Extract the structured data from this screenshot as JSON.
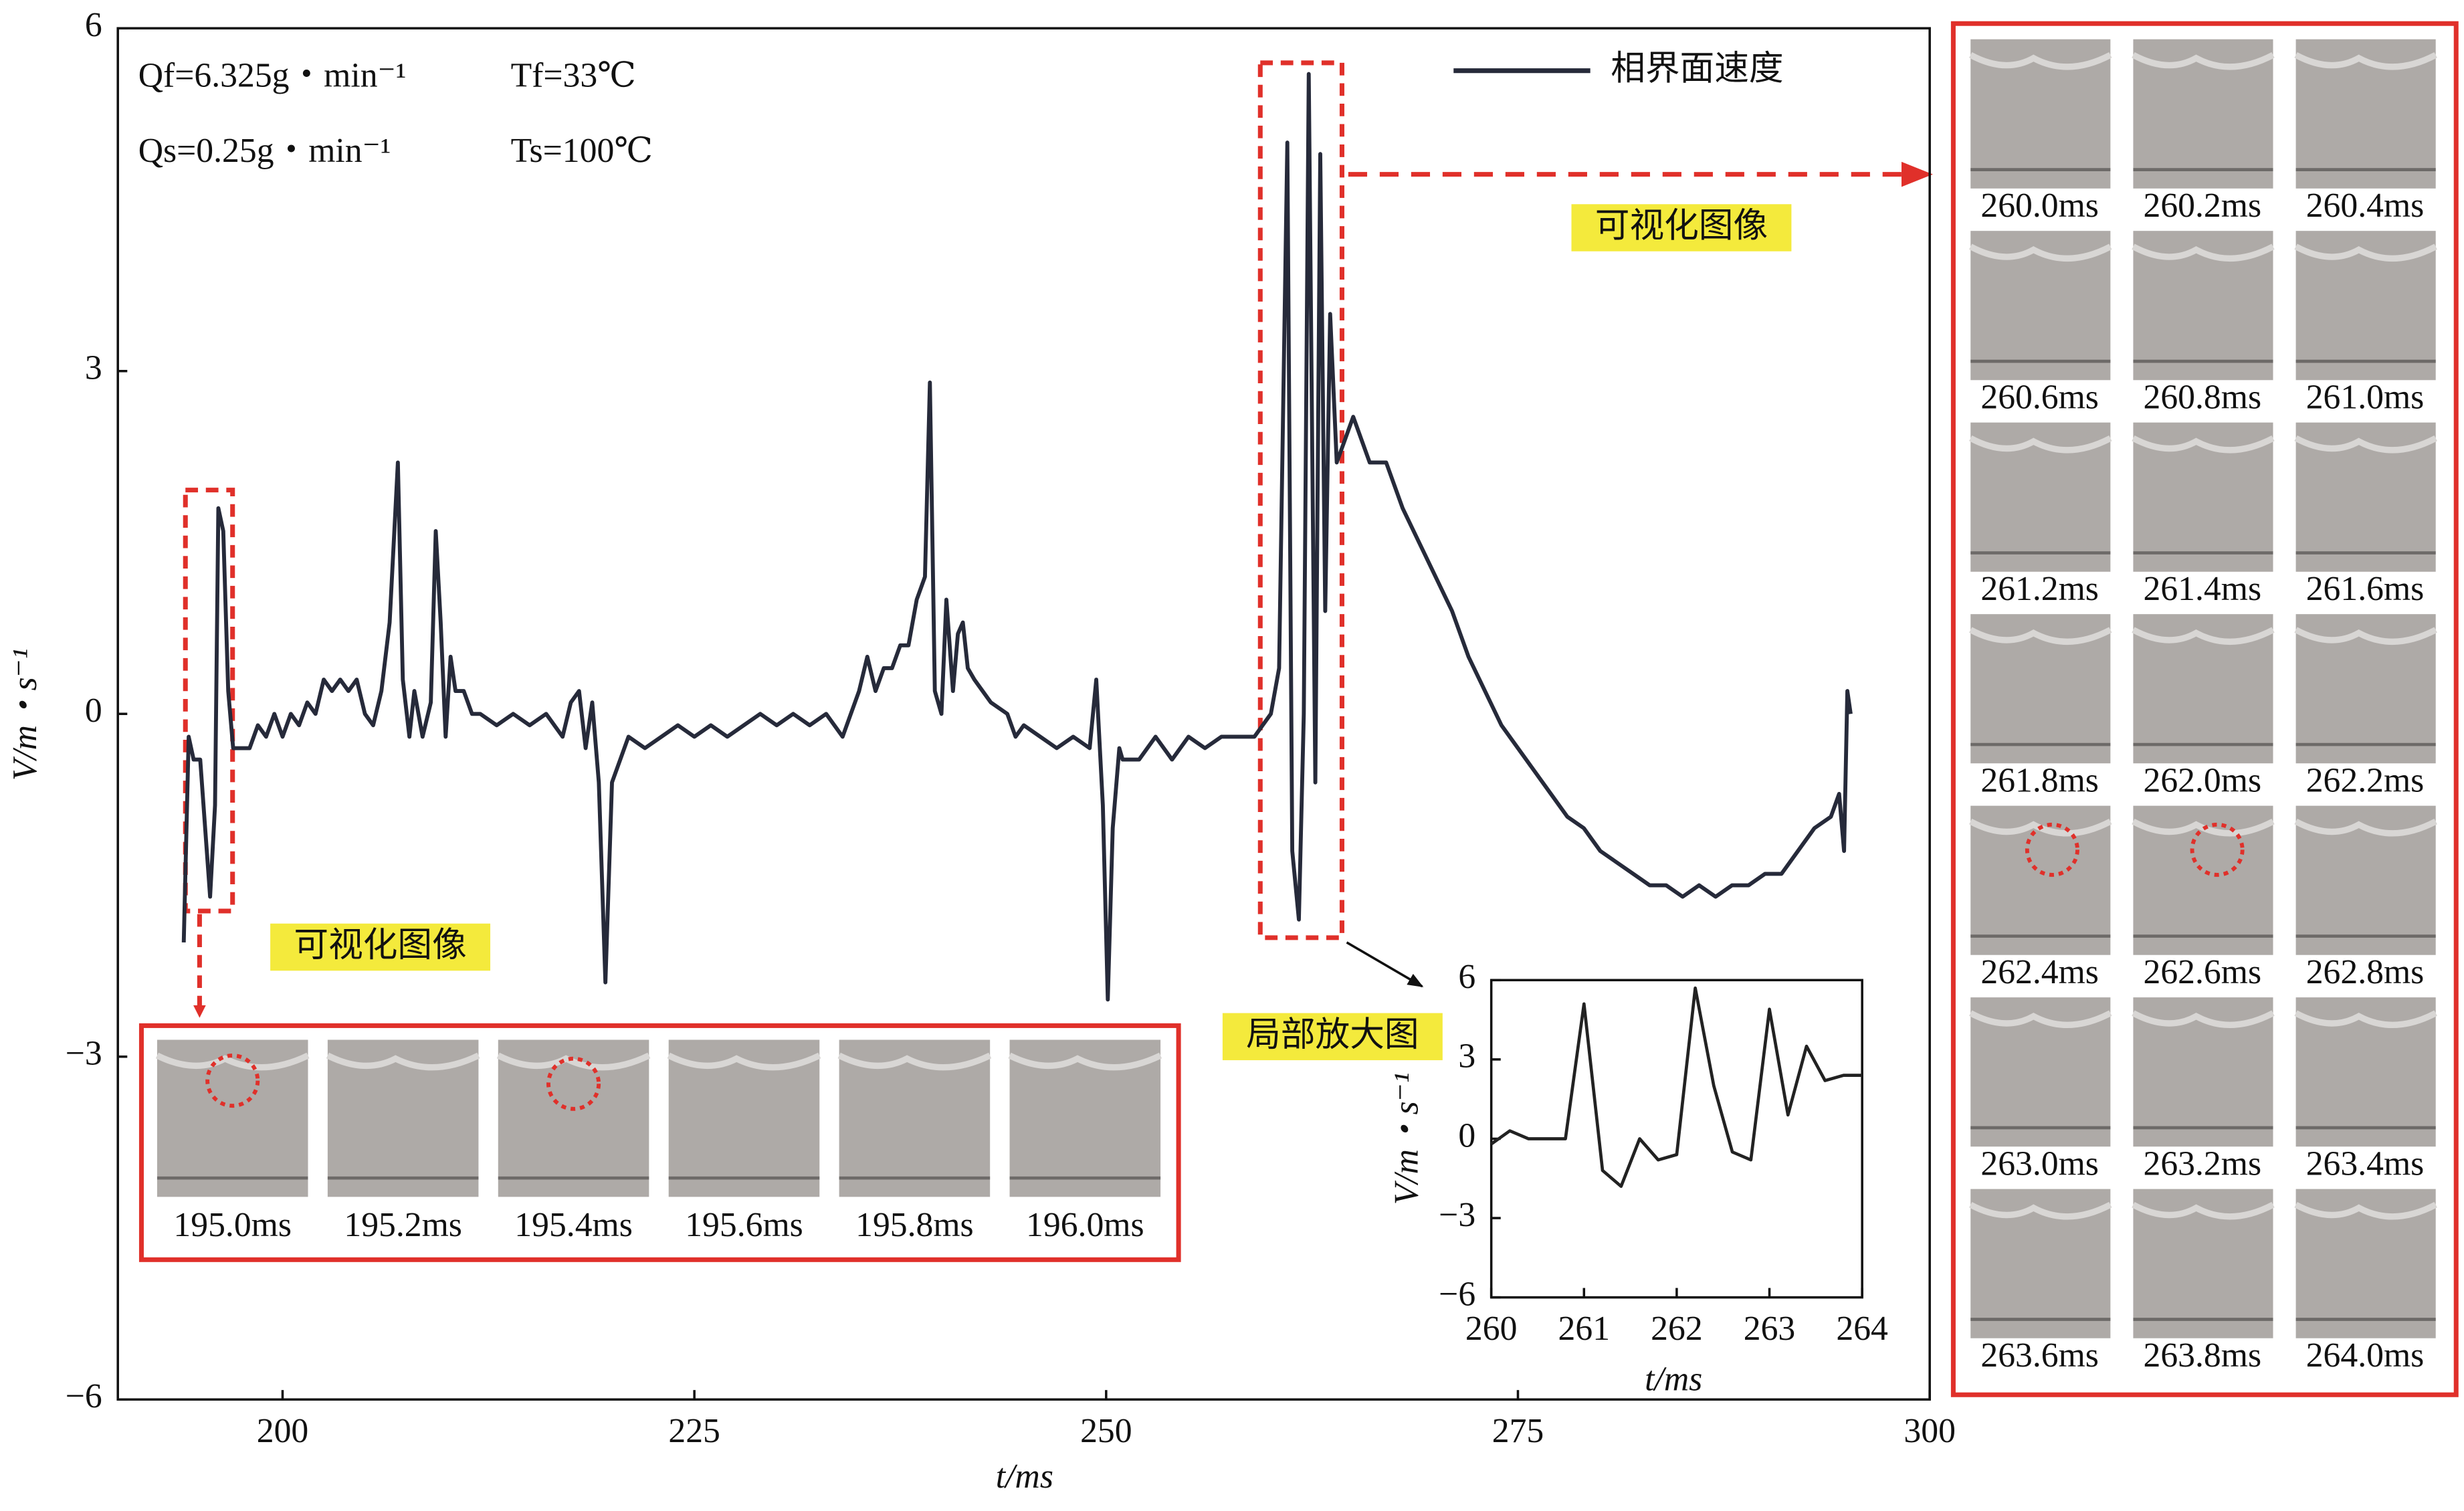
{
  "chart_data": [
    {
      "type": "line",
      "x": [
        194,
        194.3,
        194.6,
        195,
        195.3,
        195.6,
        195.9,
        196.1,
        196.4,
        196.7,
        197,
        197.5,
        198,
        198.5,
        199,
        199.5,
        200,
        200.5,
        201,
        201.5,
        202,
        202.5,
        203,
        203.5,
        204,
        204.5,
        205,
        205.5,
        206,
        206.5,
        207,
        207.3,
        207.7,
        208,
        208.5,
        209,
        209.3,
        209.6,
        209.9,
        210.2,
        210.5,
        211,
        211.5,
        212,
        213,
        214,
        215,
        216,
        217,
        217.5,
        218,
        218.4,
        218.8,
        219.2,
        219.6,
        220,
        220.5,
        221,
        222,
        223,
        224,
        225,
        226,
        227,
        228,
        229,
        230,
        231,
        232,
        233,
        234,
        234.5,
        235,
        235.5,
        236,
        236.5,
        237,
        237.5,
        238,
        238.5,
        239,
        239.3,
        239.6,
        240,
        240.3,
        240.7,
        241,
        241.3,
        241.6,
        242,
        242.5,
        243,
        244,
        244.5,
        245,
        246,
        247,
        248,
        249,
        249.4,
        249.8,
        250.1,
        250.4,
        250.8,
        251,
        252,
        253,
        254,
        255,
        256,
        257,
        258,
        259,
        260,
        260.5,
        261,
        261.3,
        261.7,
        262,
        262.3,
        262.7,
        263,
        263.3,
        263.6,
        264,
        264.5,
        265,
        266,
        267,
        268,
        269,
        270,
        271,
        272,
        273,
        274,
        275,
        276,
        277,
        278,
        279,
        280,
        281,
        282,
        283,
        284,
        285,
        286,
        287,
        288,
        289,
        290,
        291,
        292,
        293,
        294,
        294.5,
        294.8,
        295,
        295.2
      ],
      "series": [
        {
          "name": "相界面速度",
          "color": "#262a3a",
          "values": [
            -2.0,
            -0.2,
            -0.4,
            -0.4,
            -1.0,
            -1.6,
            -0.8,
            1.8,
            1.6,
            0.2,
            -0.3,
            -0.3,
            -0.3,
            -0.1,
            -0.2,
            0.0,
            -0.2,
            0.0,
            -0.1,
            0.1,
            0.0,
            0.3,
            0.2,
            0.3,
            0.2,
            0.3,
            0.0,
            -0.1,
            0.2,
            0.8,
            2.2,
            0.3,
            -0.2,
            0.2,
            -0.2,
            0.1,
            1.6,
            0.8,
            -0.2,
            0.5,
            0.2,
            0.2,
            0.0,
            0.0,
            -0.1,
            0.0,
            -0.1,
            0.0,
            -0.2,
            0.1,
            0.2,
            -0.3,
            0.1,
            -0.6,
            -2.35,
            -0.6,
            -0.4,
            -0.2,
            -0.3,
            -0.2,
            -0.1,
            -0.2,
            -0.1,
            -0.2,
            -0.1,
            0.0,
            -0.1,
            0.0,
            -0.1,
            0.0,
            -0.2,
            0.0,
            0.2,
            0.5,
            0.2,
            0.4,
            0.4,
            0.6,
            0.6,
            1.0,
            1.2,
            2.9,
            0.2,
            0.0,
            1.0,
            0.2,
            0.7,
            0.8,
            0.4,
            0.3,
            0.2,
            0.1,
            0.0,
            -0.2,
            -0.1,
            -0.2,
            -0.3,
            -0.2,
            -0.3,
            0.3,
            -0.8,
            -2.5,
            -1.0,
            -0.3,
            -0.4,
            -0.4,
            -0.2,
            -0.4,
            -0.2,
            -0.3,
            -0.2,
            -0.2,
            -0.2,
            0.0,
            0.4,
            5.0,
            -1.2,
            -1.8,
            0.0,
            5.6,
            -0.6,
            4.9,
            0.9,
            3.5,
            2.2,
            2.4,
            2.6,
            2.2,
            2.2,
            1.8,
            1.5,
            1.2,
            0.9,
            0.5,
            0.2,
            -0.1,
            -0.3,
            -0.5,
            -0.7,
            -0.9,
            -1.0,
            -1.2,
            -1.3,
            -1.4,
            -1.5,
            -1.5,
            -1.6,
            -1.5,
            -1.6,
            -1.5,
            -1.5,
            -1.4,
            -1.4,
            -1.2,
            -1.0,
            -0.9,
            -0.7,
            -1.2,
            0.2,
            0.0
          ]
        }
      ],
      "xlim": [
        190,
        300
      ],
      "ylim": [
        -6,
        6
      ],
      "xticks": [
        200,
        225,
        250,
        275,
        300
      ],
      "yticks": [
        {
          "value": -6,
          "label": "−6"
        },
        {
          "value": -3,
          "label": "−3"
        },
        0,
        3,
        6
      ],
      "xlabel": "t/ms",
      "ylabel": "V/m・s⁻¹",
      "annotations": [
        "Qf=6.325g・min⁻¹",
        "Tf=33℃",
        "Qs=0.25g・min⁻¹",
        "Ts=100℃"
      ]
    },
    {
      "type": "line",
      "x": [
        260,
        260.2,
        260.4,
        260.6,
        260.8,
        261,
        261.2,
        261.4,
        261.6,
        261.8,
        262,
        262.2,
        262.4,
        262.6,
        262.8,
        263,
        263.2,
        263.4,
        263.6,
        263.8,
        264
      ],
      "series": [
        {
          "color": "#222222",
          "values": [
            -0.2,
            0.3,
            0,
            0,
            0,
            5.1,
            -1.2,
            -1.8,
            0,
            -0.8,
            -0.6,
            5.7,
            2.0,
            -0.5,
            -0.8,
            4.9,
            0.9,
            3.5,
            2.2,
            2.4,
            2.4
          ]
        }
      ],
      "xlim": [
        260,
        264
      ],
      "ylim": [
        -6,
        6
      ],
      "xticks": [
        260,
        261,
        262,
        263,
        264
      ],
      "yticks": [
        {
          "value": -6,
          "label": "−6"
        },
        {
          "value": -3,
          "label": "−3"
        },
        0,
        3,
        6
      ],
      "xlabel": "t/ms",
      "ylabel": "V/m・s⁻¹"
    }
  ],
  "callouts": [
    "可视化图像",
    "可视化图像",
    "局部放大图"
  ],
  "bottom_frames": [
    "195.0ms",
    "195.2ms",
    "195.4ms",
    "195.6ms",
    "195.8ms",
    "196.0ms"
  ],
  "right_frames": [
    "260.0ms",
    "260.2ms",
    "260.4ms",
    "260.6ms",
    "260.8ms",
    "261.0ms",
    "261.2ms",
    "261.4ms",
    "261.6ms",
    "261.8ms",
    "262.0ms",
    "262.2ms",
    "262.4ms",
    "262.6ms",
    "262.8ms",
    "263.0ms",
    "263.2ms",
    "263.4ms",
    "263.6ms",
    "263.8ms",
    "264.0ms"
  ]
}
